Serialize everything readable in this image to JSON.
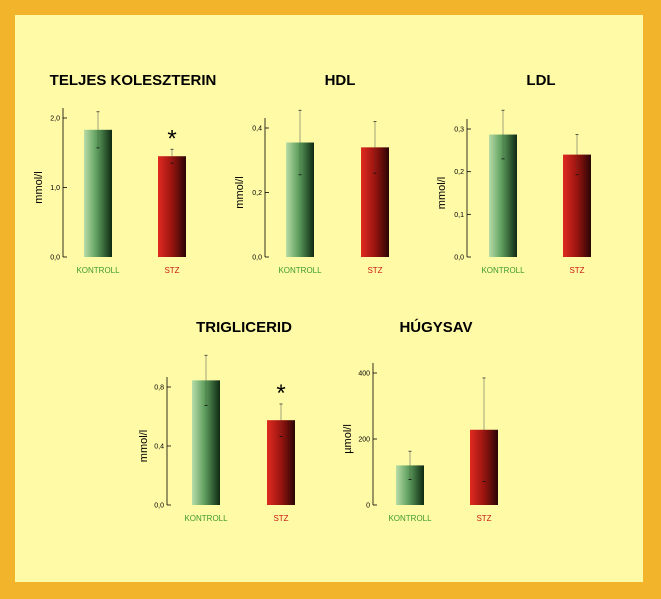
{
  "colors": {
    "border": "#F2B42A",
    "panel": "#FFFAA6",
    "kontroll_label": "#3E9A2E",
    "stz_label": "#CC1A12"
  },
  "chart_data": [
    {
      "type": "bar",
      "title": "TELJES KOLESZTERIN",
      "ylabel": "mmol/l",
      "categories": [
        "KONTROLL",
        "STZ"
      ],
      "values": [
        1.83,
        1.45
      ],
      "errors": [
        0.26,
        0.1
      ],
      "ylim": [
        0,
        2.0
      ],
      "yticks": [
        "0,0",
        "1,0",
        "2,0"
      ],
      "significance": [
        null,
        "*"
      ]
    },
    {
      "type": "bar",
      "title": "HDL",
      "ylabel": "mmol/l",
      "categories": [
        "KONTROLL",
        "STZ"
      ],
      "values": [
        0.355,
        0.34
      ],
      "errors": [
        0.1,
        0.08
      ],
      "ylim": [
        0,
        0.4
      ],
      "yticks": [
        "0,0",
        "0,2",
        "0,4"
      ],
      "significance": [
        null,
        null
      ]
    },
    {
      "type": "bar",
      "title": "LDL",
      "ylabel": "mmol/l",
      "categories": [
        "KONTROLL",
        "STZ"
      ],
      "values": [
        0.287,
        0.24
      ],
      "errors": [
        0.057,
        0.047
      ],
      "ylim": [
        0,
        0.3
      ],
      "yticks": [
        "0,0",
        "0,1",
        "0,2",
        "0,3"
      ],
      "significance": [
        null,
        null
      ]
    },
    {
      "type": "bar",
      "title": "TRIGLICERID",
      "ylabel": "mmol/l",
      "categories": [
        "KONTROLL",
        "STZ"
      ],
      "values": [
        0.845,
        0.575
      ],
      "errors": [
        0.17,
        0.11
      ],
      "ylim": [
        0,
        0.8
      ],
      "yticks": [
        "0,0",
        "0,4",
        "0,8"
      ],
      "significance": [
        null,
        "*"
      ]
    },
    {
      "type": "bar",
      "title": "HÚGYSAV",
      "ylabel": "µmol/l",
      "categories": [
        "KONTROLL",
        "STZ"
      ],
      "values": [
        120,
        228
      ],
      "errors": [
        43,
        157
      ],
      "ylim": [
        0,
        400
      ],
      "yticks": [
        "0",
        "200",
        "400"
      ],
      "significance": [
        null,
        null
      ]
    }
  ]
}
